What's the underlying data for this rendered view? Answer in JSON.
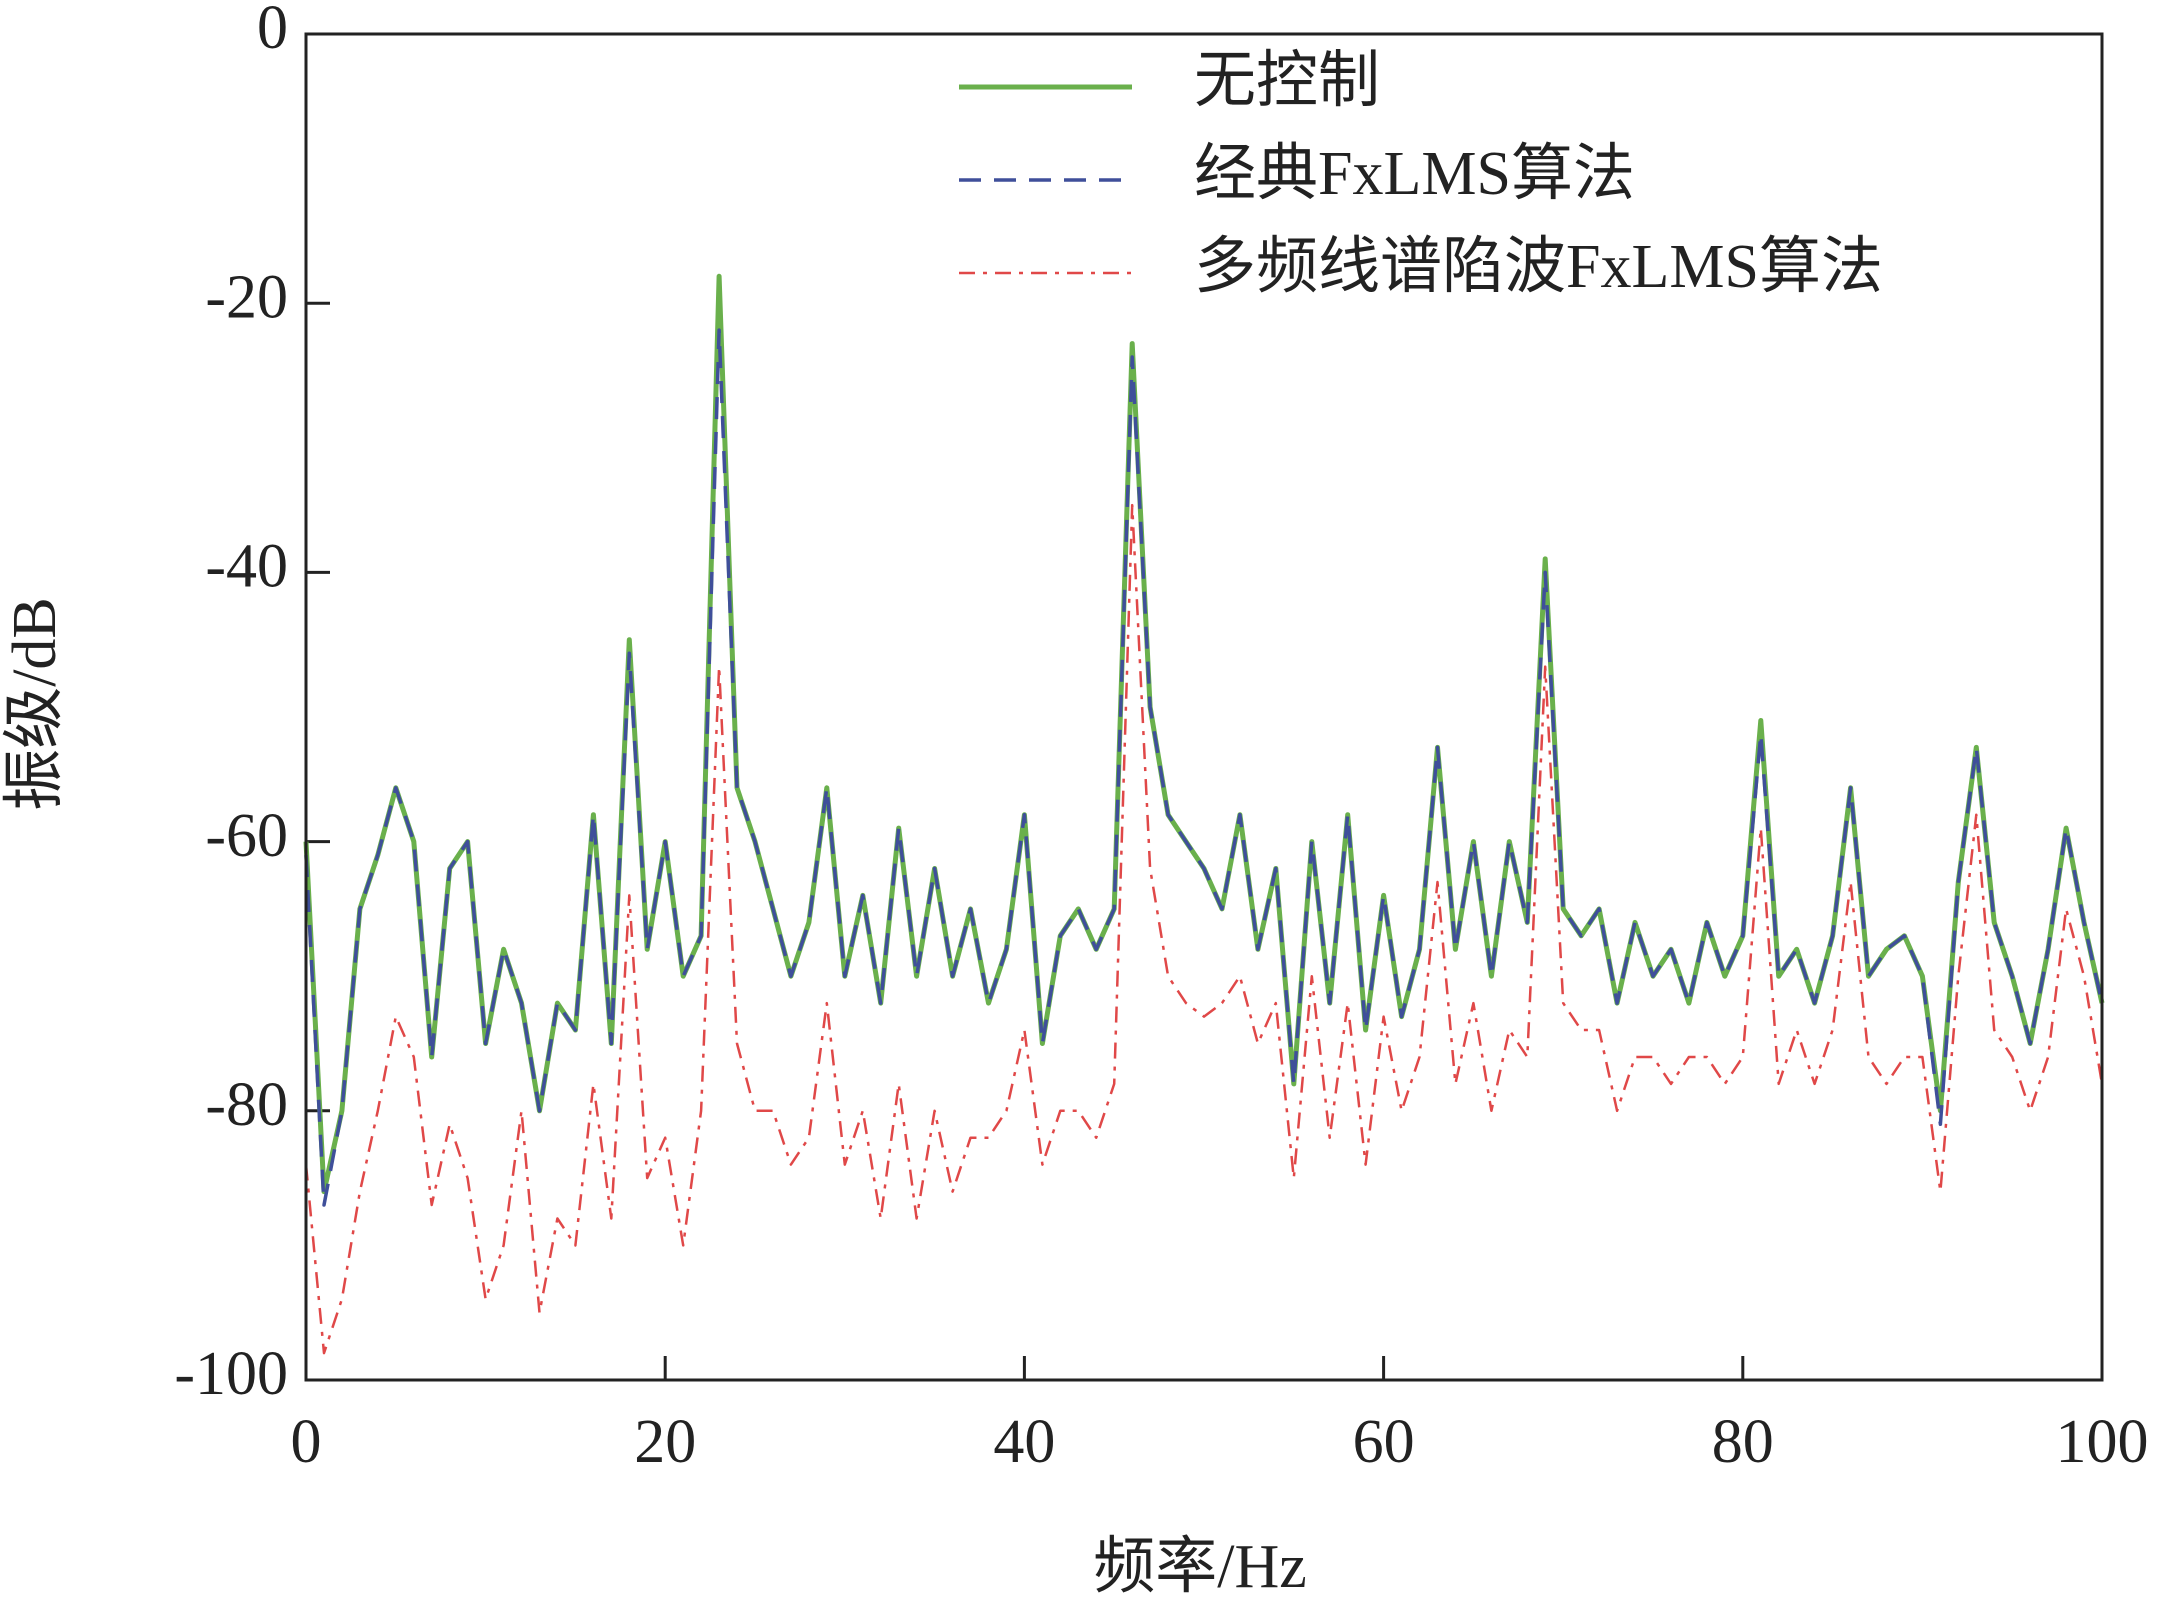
{
  "chart_data": {
    "type": "line",
    "xlabel": "频率/Hz",
    "ylabel": "振级/dB",
    "xlim": [
      0,
      100
    ],
    "xticks": [
      0,
      20,
      40,
      60,
      80,
      100
    ],
    "ylim": [
      -100,
      0
    ],
    "yticks": [
      -100,
      -80,
      -60,
      -40,
      -20,
      0
    ],
    "legend": "top-right",
    "x": [
      0,
      1,
      2,
      3,
      4,
      5,
      6,
      7,
      8,
      9,
      10,
      11,
      12,
      13,
      14,
      15,
      16,
      17,
      18,
      19,
      20,
      21,
      22,
      23,
      24,
      25,
      26,
      27,
      28,
      29,
      30,
      31,
      32,
      33,
      34,
      35,
      36,
      37,
      38,
      39,
      40,
      41,
      42,
      43,
      44,
      45,
      46,
      47,
      48,
      49,
      50,
      51,
      52,
      53,
      54,
      55,
      56,
      57,
      58,
      59,
      60,
      61,
      62,
      63,
      64,
      65,
      66,
      67,
      68,
      69,
      70,
      71,
      72,
      73,
      74,
      75,
      76,
      77,
      78,
      79,
      80,
      81,
      82,
      83,
      84,
      85,
      86,
      87,
      88,
      89,
      90,
      91,
      92,
      93,
      94,
      95,
      96,
      97,
      98,
      99,
      100
    ],
    "series": [
      {
        "name": "无控制",
        "color": "#6ab04c",
        "dash": "solid",
        "values": [
          -60,
          -86,
          -80,
          -65,
          -61,
          -56,
          -60,
          -76,
          -62,
          -60,
          -75,
          -68,
          -72,
          -80,
          -72,
          -74,
          -58,
          -75,
          -45,
          -68,
          -60,
          -70,
          -67,
          -18,
          -56,
          -60,
          -65,
          -70,
          -66,
          -56,
          -70,
          -64,
          -72,
          -59,
          -70,
          -62,
          -70,
          -65,
          -72,
          -68,
          -58,
          -75,
          -67,
          -65,
          -68,
          -65,
          -23,
          -50,
          -58,
          -60,
          -62,
          -65,
          -58,
          -68,
          -62,
          -78,
          -60,
          -72,
          -58,
          -74,
          -64,
          -73,
          -68,
          -53,
          -68,
          -60,
          -70,
          -60,
          -66,
          -39,
          -65,
          -67,
          -65,
          -72,
          -66,
          -70,
          -68,
          -72,
          -66,
          -70,
          -67,
          -51,
          -70,
          -68,
          -72,
          -67,
          -56,
          -70,
          -68,
          -67,
          -70,
          -80,
          -63,
          -53,
          -66,
          -70,
          -75,
          -68,
          -59,
          -66,
          -72
        ]
      },
      {
        "name": "经典FxLMS算法",
        "color": "#3f4f9a",
        "dash": "dashed",
        "values": [
          -61,
          -87,
          -80,
          -65,
          -61,
          -56,
          -60,
          -76,
          -62,
          -60,
          -75,
          -68,
          -72,
          -80,
          -72,
          -74,
          -58,
          -75,
          -46,
          -68,
          -60,
          -70,
          -67,
          -22,
          -56,
          -60,
          -65,
          -70,
          -66,
          -56,
          -70,
          -64,
          -72,
          -59,
          -70,
          -62,
          -70,
          -65,
          -72,
          -68,
          -58,
          -75,
          -67,
          -65,
          -68,
          -65,
          -24,
          -50,
          -58,
          -60,
          -62,
          -65,
          -58,
          -68,
          -62,
          -78,
          -60,
          -72,
          -58,
          -74,
          -64,
          -73,
          -68,
          -53,
          -68,
          -60,
          -70,
          -60,
          -66,
          -40,
          -65,
          -67,
          -65,
          -72,
          -66,
          -70,
          -68,
          -72,
          -66,
          -70,
          -67,
          -52,
          -70,
          -68,
          -72,
          -67,
          -56,
          -70,
          -68,
          -67,
          -70,
          -81,
          -63,
          -53,
          -66,
          -70,
          -75,
          -68,
          -59,
          -66,
          -72
        ]
      },
      {
        "name": "多频线谱陷波FxLMS算法",
        "color": "#e04848",
        "dash": "dashdot",
        "values": [
          -84,
          -98,
          -94,
          -86,
          -80,
          -73,
          -76,
          -87,
          -81,
          -85,
          -94,
          -90,
          -80,
          -95,
          -88,
          -90,
          -78,
          -88,
          -64,
          -85,
          -82,
          -90,
          -80,
          -47,
          -75,
          -80,
          -80,
          -84,
          -82,
          -72,
          -84,
          -80,
          -88,
          -78,
          -88,
          -80,
          -86,
          -82,
          -82,
          -80,
          -74,
          -84,
          -80,
          -80,
          -82,
          -78,
          -35,
          -62,
          -70,
          -72,
          -73,
          -72,
          -70,
          -75,
          -72,
          -85,
          -70,
          -82,
          -72,
          -84,
          -73,
          -80,
          -76,
          -63,
          -78,
          -72,
          -80,
          -74,
          -76,
          -47,
          -72,
          -74,
          -74,
          -80,
          -76,
          -76,
          -78,
          -76,
          -76,
          -78,
          -76,
          -59,
          -78,
          -74,
          -78,
          -74,
          -63,
          -76,
          -78,
          -76,
          -76,
          -86,
          -70,
          -58,
          -74,
          -76,
          -80,
          -76,
          -65,
          -70,
          -78
        ]
      }
    ]
  }
}
